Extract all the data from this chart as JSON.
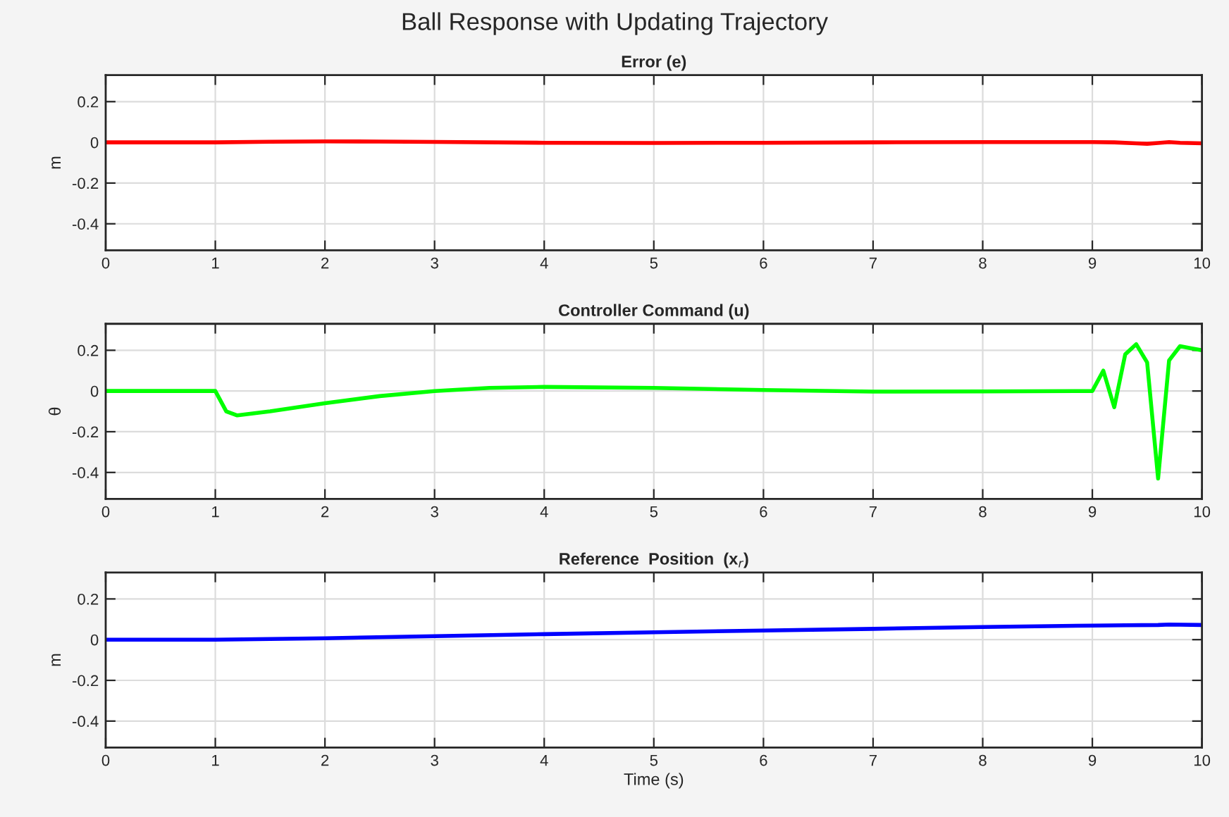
{
  "chart_data": [
    {
      "type": "line",
      "title": "Ball Response with Updating Trajectory",
      "subtitle": "Error (e)",
      "ylabel": "m",
      "series": [
        {
          "color": "#ff0000",
          "x": [
            0,
            1,
            1.5,
            2,
            2.5,
            3,
            4,
            5,
            6,
            7,
            8,
            9,
            9.2,
            9.4,
            9.5,
            9.6,
            9.7,
            9.8,
            10
          ],
          "values": [
            0,
            0,
            0.003,
            0.005,
            0.004,
            0.002,
            -0.002,
            -0.003,
            -0.002,
            0,
            0.001,
            0.001,
            0,
            -0.005,
            -0.007,
            -0.003,
            0.001,
            -0.002,
            -0.005
          ]
        }
      ],
      "xlim": [
        0,
        10
      ],
      "xticks": [
        0,
        1,
        2,
        3,
        4,
        5,
        6,
        7,
        8,
        9,
        10
      ],
      "ylim": [
        -0.53,
        0.33
      ],
      "yticks": [
        -0.4,
        -0.2,
        0,
        0.2
      ],
      "grid": true,
      "line_style": "solid"
    },
    {
      "type": "line",
      "title": "Controller Command (u)",
      "ylabel": "θ",
      "series": [
        {
          "color": "#00ff00",
          "x": [
            0,
            1,
            1.1,
            1.2,
            1.5,
            2,
            2.5,
            3,
            3.5,
            4,
            5,
            6,
            7,
            8,
            9,
            9.1,
            9.2,
            9.3,
            9.4,
            9.5,
            9.6,
            9.7,
            9.8,
            9.9,
            10
          ],
          "values": [
            0,
            0,
            -0.1,
            -0.12,
            -0.1,
            -0.06,
            -0.025,
            0,
            0.015,
            0.02,
            0.015,
            0.005,
            -0.003,
            -0.002,
            0,
            0.1,
            -0.08,
            0.18,
            0.23,
            0.14,
            -0.43,
            0.15,
            0.22,
            0.21,
            0.2
          ]
        }
      ],
      "xlim": [
        0,
        10
      ],
      "xticks": [
        0,
        1,
        2,
        3,
        4,
        5,
        6,
        7,
        8,
        9,
        10
      ],
      "ylim": [
        -0.53,
        0.33
      ],
      "yticks": [
        -0.4,
        -0.2,
        0,
        0.2
      ],
      "grid": true,
      "line_style": "solid"
    },
    {
      "type": "line",
      "title": "Reference  Position  (x$_{r}$)",
      "xlabel": "Time (s)",
      "ylabel": "m",
      "series": [
        {
          "color": "#0000ff",
          "x": [
            0,
            1,
            2,
            3,
            4,
            5,
            6,
            7,
            8,
            9,
            9.3,
            9.6,
            9.7,
            10
          ],
          "values": [
            0,
            0,
            0.007,
            0.017,
            0.027,
            0.036,
            0.045,
            0.053,
            0.062,
            0.069,
            0.071,
            0.072,
            0.074,
            0.072
          ]
        }
      ],
      "xlim": [
        0,
        10
      ],
      "xticks": [
        0,
        1,
        2,
        3,
        4,
        5,
        6,
        7,
        8,
        9,
        10
      ],
      "ylim": [
        -0.53,
        0.33
      ],
      "yticks": [
        -0.4,
        -0.2,
        0,
        0.2
      ],
      "grid": true,
      "line_style": "solid"
    }
  ]
}
